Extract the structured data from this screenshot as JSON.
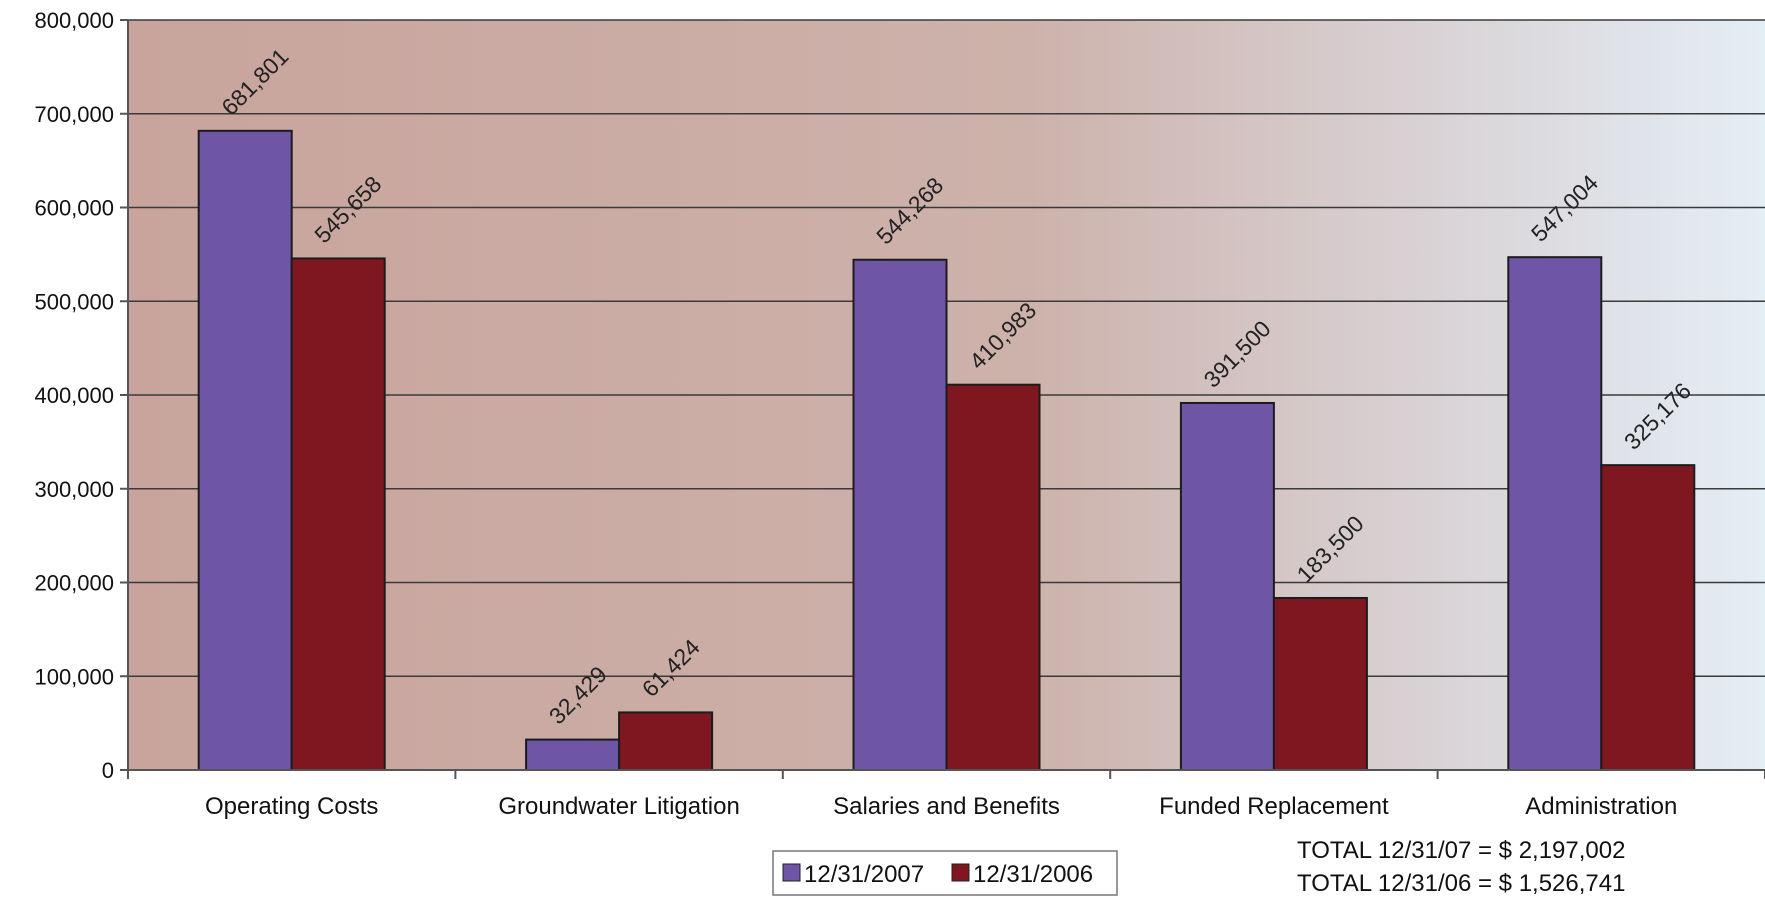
{
  "chart_data": {
    "type": "bar",
    "categories": [
      "Operating Costs",
      "Groundwater Litigation",
      "Salaries and Benefits",
      "Funded Replacement",
      "Administration"
    ],
    "series": [
      {
        "name": "12/31/2007",
        "color": "#6f55a6",
        "values": [
          681801,
          32429,
          544268,
          391500,
          547004
        ]
      },
      {
        "name": "12/31/2006",
        "color": "#7e1720",
        "values": [
          545658,
          61424,
          410983,
          183500,
          325176
        ]
      }
    ],
    "data_labels": [
      [
        "681,801",
        "32,429",
        "544,268",
        "391,500",
        "547,004"
      ],
      [
        "545,658",
        "61,424",
        "410,983",
        "183,500",
        "325,176"
      ]
    ],
    "yticks": [
      "0",
      "100,000",
      "200,000",
      "300,000",
      "400,000",
      "500,000",
      "600,000",
      "700,000",
      "800,000"
    ],
    "ylim": [
      0,
      800000
    ],
    "grid": true,
    "legend_position": "bottom-center",
    "totals": [
      "TOTAL 12/31/07 = $ 2,197,002",
      "TOTAL 12/31/06 = $ 1,526,741"
    ],
    "title": "",
    "xlabel": "",
    "ylabel": ""
  }
}
